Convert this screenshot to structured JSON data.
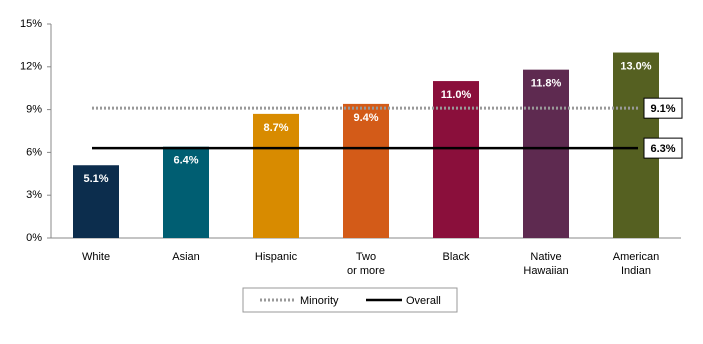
{
  "chart_data": {
    "type": "bar",
    "categories": [
      "White",
      "Asian",
      "Hispanic",
      "Two\nor more",
      "Black",
      "Native\nHawaiian",
      "American\nIndian"
    ],
    "values": [
      5.1,
      6.4,
      8.7,
      9.4,
      11.0,
      11.8,
      13.0
    ],
    "value_labels": [
      "5.1%",
      "6.4%",
      "8.7%",
      "9.4%",
      "11.0%",
      "11.8%",
      "13.0%"
    ],
    "colors": [
      "#0c2d4d",
      "#005e72",
      "#d88b00",
      "#d35b18",
      "#8a0f3b",
      "#5e2a50",
      "#556021"
    ],
    "ylim": [
      0,
      15
    ],
    "yticks": [
      {
        "value": 0,
        "label": "0%"
      },
      {
        "value": 3,
        "label": "3%"
      },
      {
        "value": 6,
        "label": "6%"
      },
      {
        "value": 9,
        "label": "9%"
      },
      {
        "value": 12,
        "label": "12%"
      },
      {
        "value": 15,
        "label": "15%"
      }
    ],
    "reference_lines": [
      {
        "name": "Minority",
        "value": 9.1,
        "label": "9.1%",
        "color": "#999999",
        "style": "dotted"
      },
      {
        "name": "Overall",
        "value": 6.3,
        "label": "6.3%",
        "color": "#000000",
        "style": "solid"
      }
    ]
  }
}
